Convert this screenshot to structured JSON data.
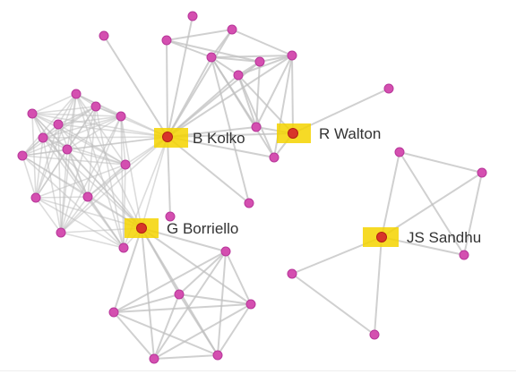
{
  "graph": {
    "colors": {
      "edge": "#c0c0c0",
      "node": "#d44fb0",
      "node_stroke": "#b8379a",
      "highlight_fill": "#f5d400",
      "highlight_node": "#d8342a"
    },
    "labels": {
      "kolko": "B Kolko",
      "walton": "R Walton",
      "borriello": "G Borriello",
      "sandhu": "JS Sandhu"
    }
  }
}
